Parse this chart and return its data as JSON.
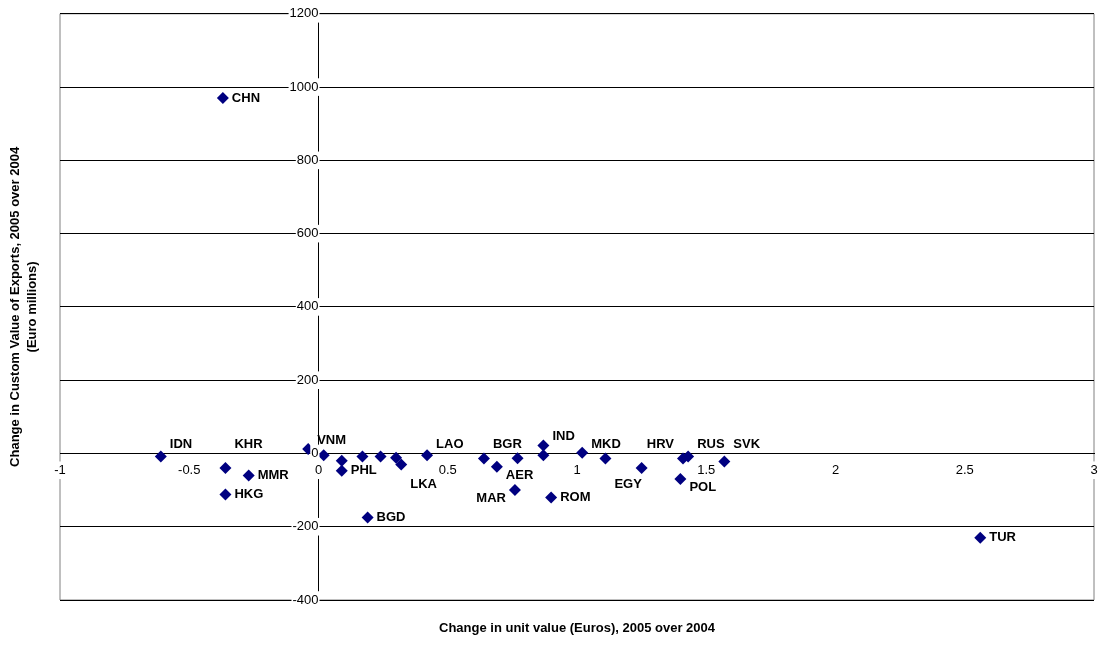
{
  "chart_data": {
    "type": "scatter",
    "xlabel": "Change in unit value (Euros), 2005 over 2004",
    "ylabel": "Change in Custom Value of Exports, 2005 over 2004\n(Euro millions)",
    "xlim": [
      -1,
      3
    ],
    "xticks": [
      -1,
      -0.5,
      0,
      0.5,
      1,
      1.5,
      2,
      2.5,
      3
    ],
    "ylim": [
      -400,
      1200
    ],
    "yticks": [
      -400,
      -200,
      0,
      200,
      400,
      600,
      800,
      1000,
      1200
    ],
    "grid": "y",
    "marker": "diamond",
    "legend": false,
    "series": [
      {
        "color": "#000080",
        "x": [
          -0.37,
          -0.61,
          -0.36,
          -0.27,
          -0.36,
          -0.04,
          0.02,
          0.09,
          0.09,
          0.19,
          0.17,
          0.24,
          0.3,
          0.32,
          0.42,
          0.64,
          0.69,
          0.77,
          0.87,
          0.87,
          0.76,
          0.9,
          1.02,
          1.11,
          1.25,
          1.4,
          1.41,
          1.43,
          1.57,
          2.56
        ],
        "values": [
          970,
          -8,
          -40,
          -60,
          -112,
          12,
          -5,
          -20,
          -47,
          -175,
          -8,
          -8,
          -12,
          -30,
          -5,
          -14,
          -36,
          -13,
          -5,
          22,
          -100,
          -120,
          2,
          -14,
          -40,
          -70,
          -14,
          -8,
          -22,
          -230
        ],
        "value_labels": [
          "CHN",
          "IDN",
          "KHR",
          "MMR",
          "HKG",
          "VNM",
          null,
          null,
          "PHL",
          "BGD",
          null,
          null,
          null,
          "LKA",
          "LAO",
          "BGR",
          "AER",
          null,
          null,
          "IND",
          "MAR",
          "ROM",
          "MKD",
          "EGY",
          null,
          "POL",
          "HRV",
          "RUS",
          "SVK",
          "TUR"
        ]
      }
    ]
  }
}
